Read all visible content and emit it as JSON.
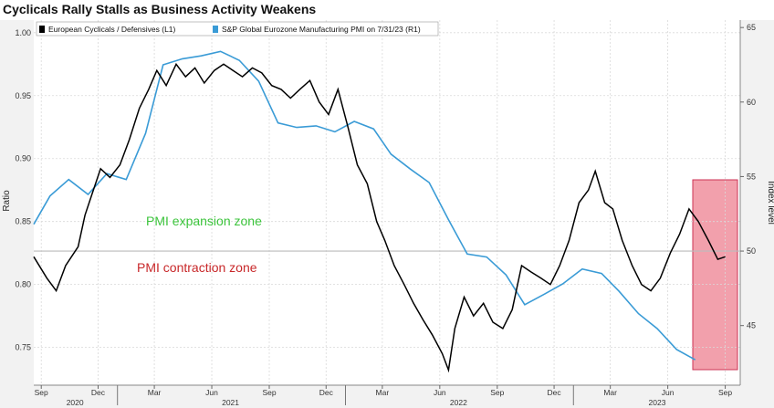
{
  "title": "Cyclicals Rally Stalls as Business Activity Weakens",
  "chart_data": {
    "type": "line",
    "legend": {
      "placement": "top-left",
      "entries": [
        "European Cyclicals / Defensives (L1)",
        "S&P Global Eurozone Manufacturing PMI on 7/31/23 (R1)"
      ]
    },
    "ylabel_left": "Ratio",
    "ylabel_right": "Index level",
    "yticks_left": [
      "1.00",
      "0.95",
      "0.90",
      "0.85",
      "0.80",
      "0.75"
    ],
    "yticks_right": [
      "65",
      "60",
      "55",
      "50",
      "45"
    ],
    "ylim_left": [
      0.72,
      1.01
    ],
    "ylim_right": [
      41,
      65.5
    ],
    "xlim": [
      "2020-08-20",
      "2023-09-25"
    ],
    "x_month_ticks": [
      "Sep",
      "Dec",
      "Mar",
      "Jun",
      "Sep",
      "Dec",
      "Mar",
      "Jun",
      "Sep",
      "Dec",
      "Mar",
      "Jun",
      "Sep"
    ],
    "x_year_labels": [
      "2020",
      "2021",
      "2022",
      "2023"
    ],
    "annotations": [
      "PMI expansion zone",
      "PMI contraction zone"
    ],
    "grid": true,
    "reference_line": {
      "axis": "right",
      "value": 50
    },
    "highlight_region": {
      "start": "2023-06-15",
      "end": "2023-09-01"
    },
    "colors": {
      "ratio": "#000000",
      "pmi": "#3a9bd6",
      "expansion": "#3cc43c",
      "contraction": "#c8282a",
      "highlight": "#f2a0ac"
    },
    "series": [
      {
        "name": "European Cyclicals / Defensives (L1)",
        "x": [
          "2020-08-20",
          "2020-09-10",
          "2020-09-25",
          "2020-10-10",
          "2020-10-30",
          "2020-11-10",
          "2020-11-20",
          "2020-12-05",
          "2020-12-20",
          "2021-01-05",
          "2021-01-20",
          "2021-02-05",
          "2021-02-20",
          "2021-03-05",
          "2021-03-20",
          "2021-04-05",
          "2021-04-20",
          "2021-05-05",
          "2021-05-20",
          "2021-06-05",
          "2021-06-20",
          "2021-07-05",
          "2021-07-20",
          "2021-08-05",
          "2021-08-20",
          "2021-09-05",
          "2021-09-20",
          "2021-10-05",
          "2021-10-20",
          "2021-11-05",
          "2021-11-20",
          "2021-12-05",
          "2021-12-20",
          "2022-01-05",
          "2022-01-20",
          "2022-02-05",
          "2022-02-20",
          "2022-03-05",
          "2022-03-20",
          "2022-04-05",
          "2022-04-20",
          "2022-05-05",
          "2022-05-20",
          "2022-06-05",
          "2022-06-15",
          "2022-06-25",
          "2022-07-10",
          "2022-07-25",
          "2022-08-10",
          "2022-08-25",
          "2022-09-10",
          "2022-09-25",
          "2022-10-10",
          "2022-10-25",
          "2022-11-10",
          "2022-11-25",
          "2022-12-10",
          "2022-12-25",
          "2023-01-10",
          "2023-01-25",
          "2023-02-05",
          "2023-02-20",
          "2023-03-05",
          "2023-03-20",
          "2023-04-05",
          "2023-04-20",
          "2023-05-05",
          "2023-05-20",
          "2023-06-05",
          "2023-06-20",
          "2023-07-05",
          "2023-07-20",
          "2023-08-05",
          "2023-08-20",
          "2023-09-01"
        ],
        "values": [
          0.822,
          0.805,
          0.795,
          0.815,
          0.83,
          0.855,
          0.87,
          0.892,
          0.885,
          0.895,
          0.915,
          0.94,
          0.955,
          0.97,
          0.958,
          0.975,
          0.965,
          0.972,
          0.96,
          0.97,
          0.975,
          0.97,
          0.965,
          0.972,
          0.968,
          0.958,
          0.955,
          0.948,
          0.955,
          0.962,
          0.945,
          0.935,
          0.955,
          0.925,
          0.895,
          0.88,
          0.85,
          0.835,
          0.815,
          0.8,
          0.785,
          0.772,
          0.76,
          0.745,
          0.732,
          0.765,
          0.79,
          0.775,
          0.785,
          0.77,
          0.765,
          0.78,
          0.815,
          0.81,
          0.805,
          0.8,
          0.815,
          0.835,
          0.865,
          0.875,
          0.89,
          0.865,
          0.86,
          0.835,
          0.815,
          0.8,
          0.795,
          0.805,
          0.825,
          0.84,
          0.86,
          0.85,
          0.835,
          0.82,
          0.822
        ]
      },
      {
        "name": "S&P Global Eurozone Manufacturing PMI on 7/31/23 (R1)",
        "x": [
          "2020-08-20",
          "2020-09-15",
          "2020-10-15",
          "2020-11-15",
          "2020-12-15",
          "2021-01-15",
          "2021-02-15",
          "2021-03-15",
          "2021-04-15",
          "2021-05-15",
          "2021-06-15",
          "2021-07-15",
          "2021-08-15",
          "2021-09-15",
          "2021-10-15",
          "2021-11-15",
          "2021-12-15",
          "2022-01-15",
          "2022-02-15",
          "2022-03-15",
          "2022-04-15",
          "2022-05-15",
          "2022-06-15",
          "2022-07-15",
          "2022-08-15",
          "2022-09-15",
          "2022-10-15",
          "2022-11-15",
          "2022-12-15",
          "2023-01-15",
          "2023-02-15",
          "2023-03-15",
          "2023-04-15",
          "2023-05-15",
          "2023-06-15",
          "2023-07-15"
        ],
        "values": [
          51.8,
          53.7,
          54.8,
          53.8,
          55.2,
          54.8,
          57.9,
          62.5,
          62.9,
          63.1,
          63.4,
          62.8,
          61.4,
          58.6,
          58.3,
          58.4,
          58.0,
          58.7,
          58.2,
          56.5,
          55.5,
          54.6,
          52.1,
          49.8,
          49.6,
          48.4,
          46.4,
          47.1,
          47.8,
          48.8,
          48.5,
          47.3,
          45.8,
          44.8,
          43.4,
          42.7
        ]
      }
    ]
  }
}
